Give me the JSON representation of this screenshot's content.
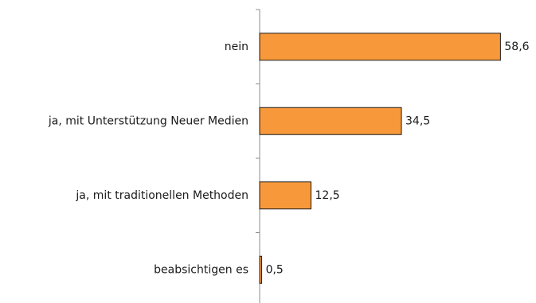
{
  "chart_data": {
    "type": "bar",
    "orientation": "horizontal",
    "categories": [
      "nein",
      "ja, mit Unterstützung Neuer Medien",
      "ja, mit traditionellen Methoden",
      "beabsichtigen es"
    ],
    "values": [
      58.6,
      34.5,
      12.5,
      0.5
    ],
    "value_labels": [
      "58,6",
      "34,5",
      "12,5",
      "0,5"
    ],
    "title": "",
    "xlabel": "",
    "ylabel": "",
    "xlim": [
      0,
      60
    ],
    "grid": false,
    "legend": "none",
    "bar_color": "#f7993b",
    "bar_edge_color": "#1a1a1a"
  }
}
